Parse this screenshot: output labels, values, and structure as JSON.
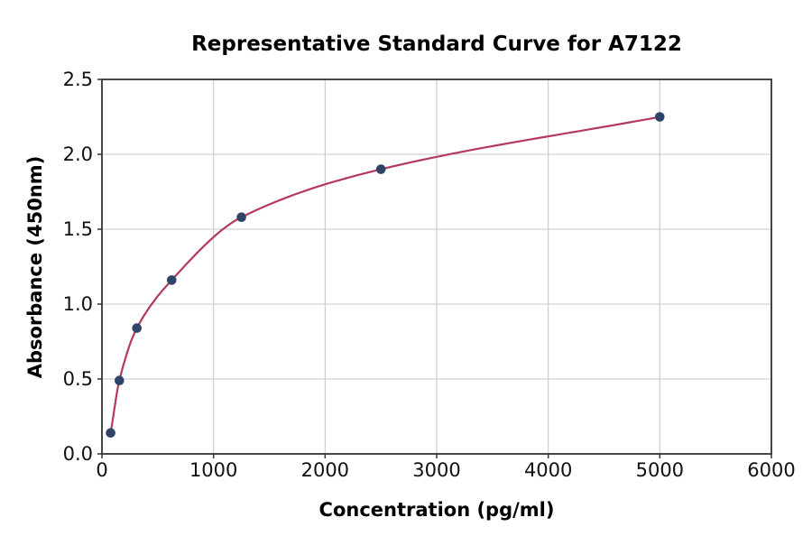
{
  "chart_data": {
    "type": "scatter",
    "title": "Representative Standard Curve for A7122",
    "xlabel": "Concentration (pg/ml)",
    "ylabel": "Absorbance (450nm)",
    "x": [
      78,
      156,
      313,
      625,
      1250,
      2500,
      5000
    ],
    "y": [
      0.14,
      0.49,
      0.84,
      1.16,
      1.58,
      1.9,
      2.25
    ],
    "xlim": [
      0,
      6000
    ],
    "ylim": [
      0,
      2.5
    ],
    "x_ticks": [
      0,
      1000,
      2000,
      3000,
      4000,
      5000,
      6000
    ],
    "y_ticks": [
      0,
      0.5,
      1,
      1.5,
      2,
      2.5
    ],
    "x_tick_labels": [
      "0",
      "1000",
      "2000",
      "3000",
      "4000",
      "5000",
      "6000"
    ],
    "y_tick_labels": [
      "0.0",
      "0.5",
      "1.0",
      "1.5",
      "2.0",
      "2.5"
    ],
    "grid": true,
    "legend": null,
    "colors": {
      "curve": "#b5395f",
      "marker": "#2f4468",
      "grid": "#c9c9c9",
      "spine": "#333333",
      "text": "#111111",
      "background": "#ffffff"
    }
  }
}
